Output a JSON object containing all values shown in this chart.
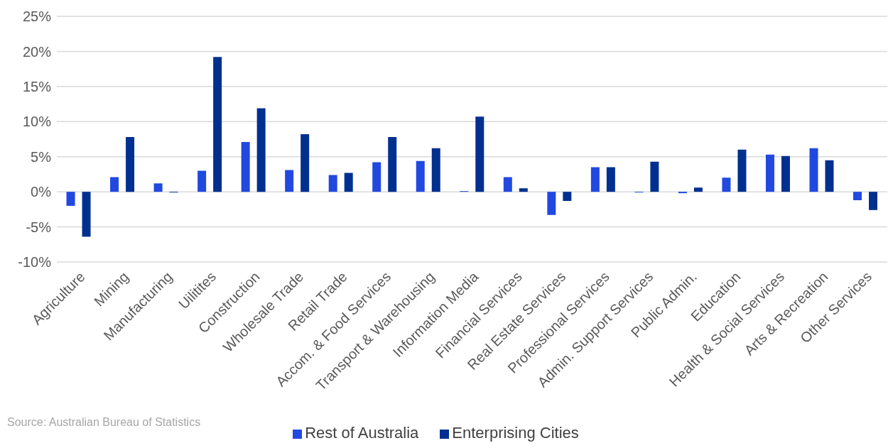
{
  "chart_data": {
    "type": "bar",
    "categories": [
      "Agriculture",
      "Mining",
      "Manufacturing",
      "Uilitites",
      "Construction",
      "Wholesale Trade",
      "Retail Trade",
      "Accom. & Food Services",
      "Transport & Warehousing",
      "Information Media",
      "Financial Services",
      "Real Estate Services",
      "Professional Services",
      "Admin. Support Services",
      "Public Admin.",
      "Education",
      "Health & Social Services",
      "Arts & Recreation",
      "Other Services"
    ],
    "series": [
      {
        "name": "Rest of Australia",
        "color": "#2149e0",
        "values": [
          -2.0,
          2.1,
          1.2,
          3.0,
          7.1,
          3.1,
          2.4,
          4.2,
          4.4,
          0.1,
          2.1,
          -3.3,
          3.5,
          -0.1,
          -0.2,
          2.0,
          5.3,
          6.2,
          -1.2
        ]
      },
      {
        "name": "Enterprising Cities",
        "color": "#00308f",
        "values": [
          -6.4,
          7.8,
          -0.1,
          19.2,
          11.9,
          8.2,
          2.7,
          7.8,
          6.2,
          10.7,
          0.5,
          -1.3,
          3.5,
          4.3,
          0.6,
          6.0,
          5.1,
          4.5,
          -2.6
        ]
      }
    ],
    "ylim": [
      -10,
      25
    ],
    "yticks": [
      {
        "value": -10,
        "label": "-10%"
      },
      {
        "value": -5,
        "label": "-5%"
      },
      {
        "value": 0,
        "label": "0%"
      },
      {
        "value": 5,
        "label": "5%"
      },
      {
        "value": 10,
        "label": "10%"
      },
      {
        "value": 15,
        "label": "15%"
      },
      {
        "value": 20,
        "label": "20%"
      },
      {
        "value": 25,
        "label": "25%"
      }
    ],
    "grid": "y",
    "legend": "bottom",
    "annotations": [
      "Source: Australian Bureau of Statistics"
    ]
  }
}
